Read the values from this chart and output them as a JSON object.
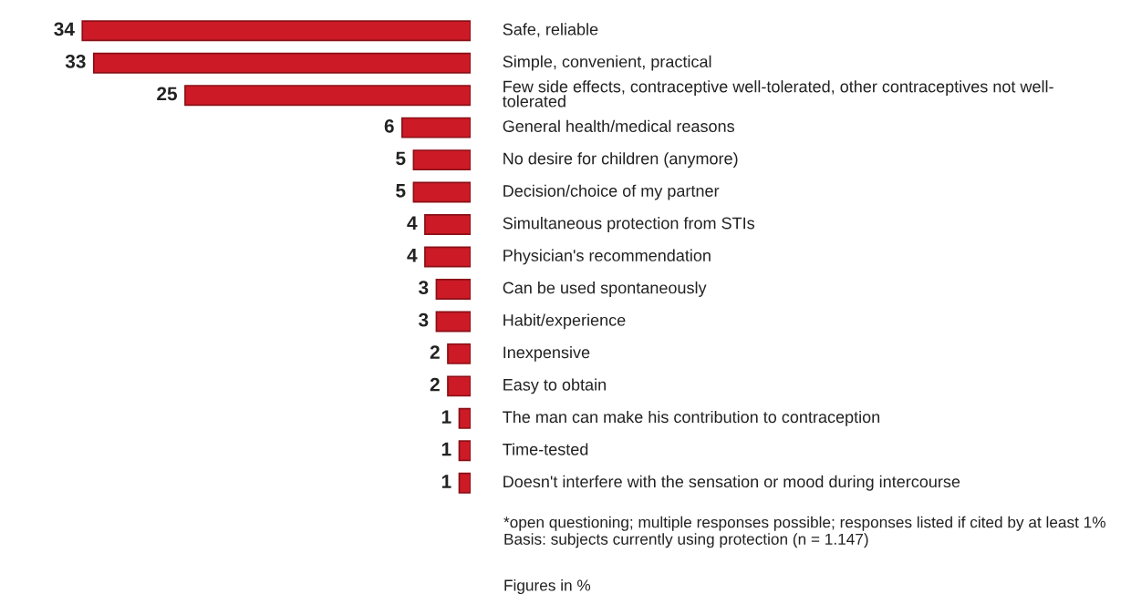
{
  "chart_data": {
    "type": "bar",
    "orientation": "horizontal",
    "data_labels": true,
    "color": "#cc1a26",
    "categories": [
      "Safe, reliable",
      "Simple, convenient, practical",
      "Few side effects, contraceptive well-tolerated, other contraceptives not well-\ntolerated",
      "General health/medical reasons",
      "No desire for children (anymore)",
      "Decision/choice of my partner",
      "Simultaneous protection from STIs",
      "Physician's recommendation",
      "Can be used spontaneously",
      "Habit/experience",
      "Inexpensive",
      "Easy to obtain",
      "The man can make his contribution to contraception",
      "Time-tested",
      "Doesn't interfere with the sensation or mood during intercourse"
    ],
    "values": [
      34,
      33,
      25,
      6,
      5,
      5,
      4,
      4,
      3,
      3,
      2,
      2,
      1,
      1,
      1
    ],
    "annotations": [
      "*open questioning; multiple responses possible; responses listed if cited by at least 1%\nBasis: subjects currently using protection (n = 1.147)",
      "Figures in %"
    ]
  }
}
